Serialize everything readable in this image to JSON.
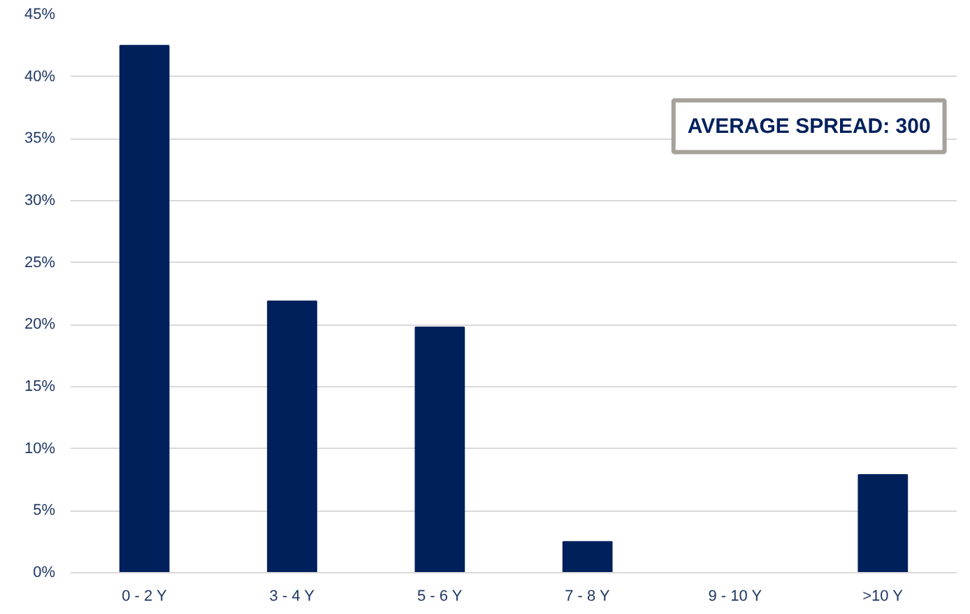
{
  "chart_data": {
    "type": "bar",
    "categories": [
      "0 - 2 Y",
      "3 - 4 Y",
      "5 - 6 Y",
      "7 - 8 Y",
      "9 - 10 Y",
      ">10 Y"
    ],
    "values": [
      42.5,
      21.9,
      19.8,
      2.5,
      0,
      7.9
    ],
    "color": "#00205b",
    "ylim": [
      0,
      45
    ],
    "yticks": [
      {
        "value": 0,
        "label": "0%"
      },
      {
        "value": 5,
        "label": "5%"
      },
      {
        "value": 10,
        "label": "10%"
      },
      {
        "value": 15,
        "label": "15%"
      },
      {
        "value": 20,
        "label": "20%"
      },
      {
        "value": 25,
        "label": "25%"
      },
      {
        "value": 30,
        "label": "30%"
      },
      {
        "value": 35,
        "label": "35%"
      },
      {
        "value": 40,
        "label": "40%"
      },
      {
        "value": 45,
        "label": "45%"
      }
    ],
    "grid": "y",
    "annotations": [
      "AVERAGE SPREAD: 300"
    ]
  }
}
